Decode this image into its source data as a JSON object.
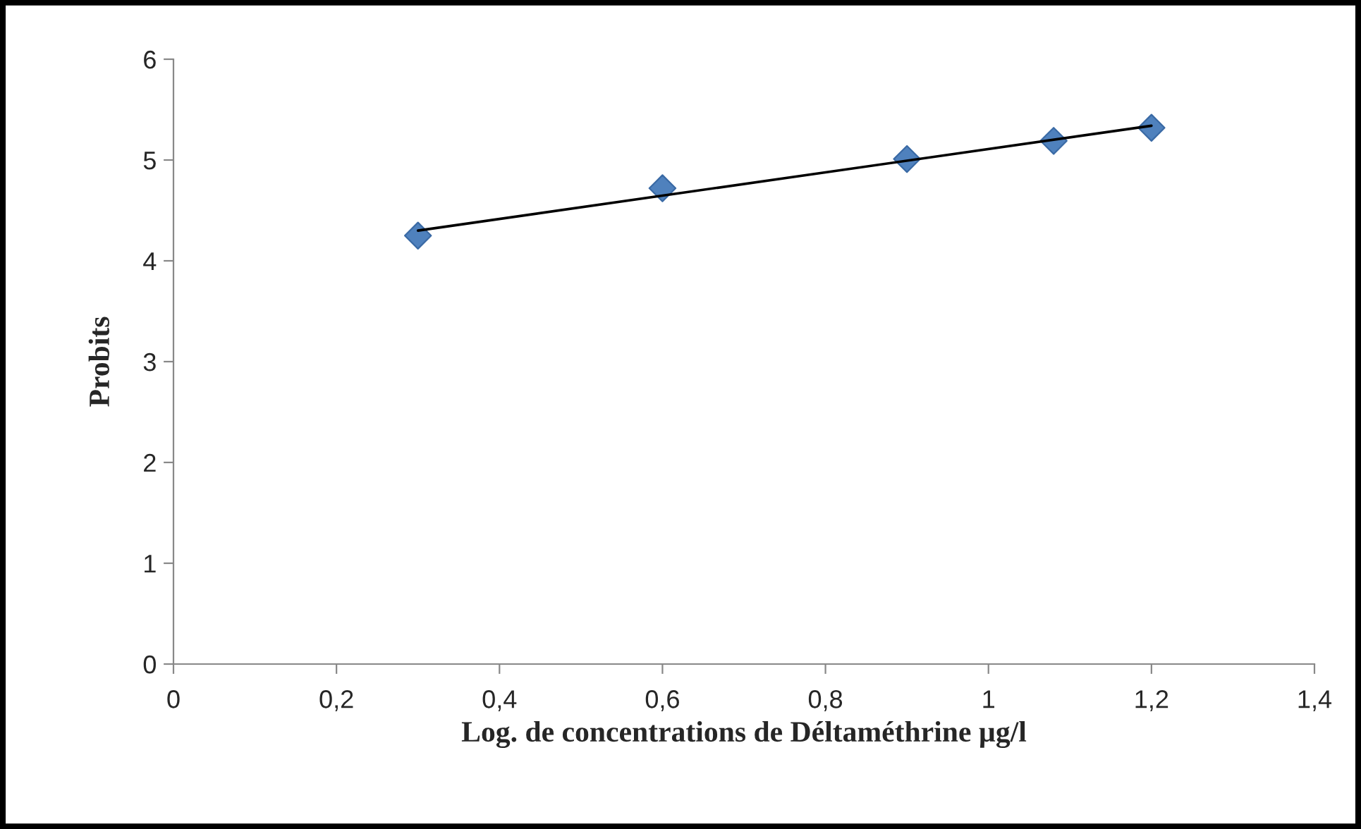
{
  "chart_data": {
    "type": "scatter",
    "xlabel": "Log. de concentrations de Déltaméthrine µg/l",
    "ylabel": "Probits",
    "xlim": [
      0,
      1.4
    ],
    "xticks": [
      {
        "value": 0,
        "label": "0"
      },
      {
        "value": 0.2,
        "label": "0,2"
      },
      {
        "value": 0.4,
        "label": "0,4"
      },
      {
        "value": 0.6,
        "label": "0,6"
      },
      {
        "value": 0.8,
        "label": "0,8"
      },
      {
        "value": 1,
        "label": "1"
      },
      {
        "value": 1.2,
        "label": "1,2"
      },
      {
        "value": 1.4,
        "label": "1,4"
      }
    ],
    "ylim": [
      0,
      6
    ],
    "yticks": [
      0,
      1,
      2,
      3,
      4,
      5,
      6
    ],
    "grid": false,
    "legend": false,
    "series": [
      {
        "color": "#4f81bd",
        "marker": "diamond",
        "x": [
          0.3,
          0.6,
          0.9,
          1.08,
          1.2
        ],
        "values": [
          4.25,
          4.72,
          5.01,
          5.19,
          5.32
        ]
      },
      {
        "type": "line",
        "color": "#000000",
        "marker": "none",
        "line_style": "solid",
        "x": [
          0.3,
          1.2
        ],
        "values": [
          4.3,
          5.34
        ]
      }
    ]
  }
}
